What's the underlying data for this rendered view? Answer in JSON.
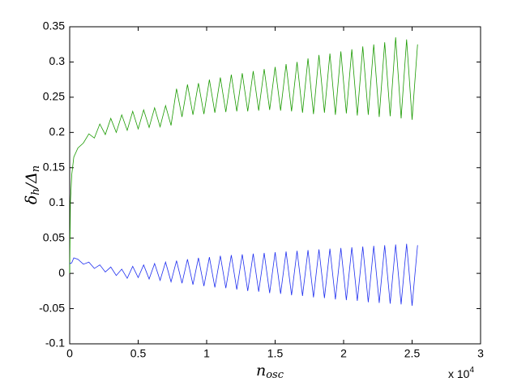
{
  "chart_data": {
    "type": "line",
    "xlabel": [
      "n",
      "osc"
    ],
    "ylabel": [
      "δ",
      "h",
      "/Δ",
      "n"
    ],
    "x_multiplier": [
      "x 10",
      "4"
    ],
    "x": [
      0,
      50,
      150,
      300,
      600,
      1000,
      1400,
      1800,
      2200,
      2600,
      3000,
      3400,
      3800,
      4200,
      4600,
      5000,
      5400,
      5800,
      6200,
      6600,
      7000,
      7400,
      7800,
      8200,
      8600,
      9000,
      9400,
      9800,
      10200,
      10600,
      11000,
      11400,
      11800,
      12200,
      12600,
      13000,
      13400,
      13800,
      14200,
      14600,
      15000,
      15400,
      15800,
      16200,
      16600,
      17000,
      17400,
      17800,
      18200,
      18600,
      19000,
      19400,
      19800,
      20200,
      20600,
      21000,
      21400,
      21800,
      22200,
      22600,
      23000,
      23400,
      23800,
      24200,
      24600,
      25000,
      25400
    ],
    "series": [
      {
        "color": "#1a9a00",
        "values": [
          0,
          0.1,
          0.14,
          0.165,
          0.178,
          0.185,
          0.198,
          0.192,
          0.212,
          0.197,
          0.22,
          0.2,
          0.225,
          0.203,
          0.23,
          0.205,
          0.232,
          0.207,
          0.235,
          0.208,
          0.238,
          0.21,
          0.262,
          0.222,
          0.268,
          0.225,
          0.27,
          0.226,
          0.275,
          0.228,
          0.278,
          0.229,
          0.282,
          0.23,
          0.284,
          0.23,
          0.287,
          0.231,
          0.29,
          0.232,
          0.293,
          0.231,
          0.297,
          0.23,
          0.3,
          0.228,
          0.305,
          0.226,
          0.31,
          0.228,
          0.312,
          0.225,
          0.315,
          0.227,
          0.318,
          0.224,
          0.322,
          0.225,
          0.325,
          0.222,
          0.328,
          0.223,
          0.335,
          0.22,
          0.332,
          0.218,
          0.325
        ]
      },
      {
        "color": "#1f2ff0",
        "values": [
          0.015,
          0.014,
          0.015,
          0.022,
          0.02,
          0.013,
          0.016,
          0.007,
          0.012,
          0.002,
          0.009,
          -0.003,
          0.006,
          -0.007,
          0.01,
          -0.006,
          0.012,
          -0.008,
          0.014,
          -0.01,
          0.016,
          -0.012,
          0.018,
          -0.014,
          0.02,
          -0.016,
          0.022,
          -0.018,
          0.023,
          -0.02,
          0.025,
          -0.021,
          0.026,
          -0.023,
          0.027,
          -0.025,
          0.028,
          -0.026,
          0.029,
          -0.028,
          0.03,
          -0.029,
          0.031,
          -0.031,
          0.032,
          -0.032,
          0.033,
          -0.034,
          0.034,
          -0.035,
          0.035,
          -0.037,
          0.036,
          -0.038,
          0.037,
          -0.039,
          0.038,
          -0.041,
          0.039,
          -0.042,
          0.04,
          -0.043,
          0.041,
          -0.044,
          0.042,
          -0.046,
          0.04
        ]
      }
    ],
    "xlim": [
      0,
      30000
    ],
    "xticks": [
      {
        "value": 0,
        "label": "0"
      },
      {
        "value": 5000,
        "label": "0.5"
      },
      {
        "value": 10000,
        "label": "1"
      },
      {
        "value": 15000,
        "label": "1.5"
      },
      {
        "value": 20000,
        "label": "2"
      },
      {
        "value": 25000,
        "label": "2.5"
      },
      {
        "value": 30000,
        "label": "3"
      }
    ],
    "ylim": [
      -0.1,
      0.35
    ],
    "yticks": [
      -0.1,
      -0.05,
      0,
      0.05,
      0.1,
      0.15,
      0.2,
      0.25,
      0.3,
      0.35
    ],
    "grid": false
  }
}
